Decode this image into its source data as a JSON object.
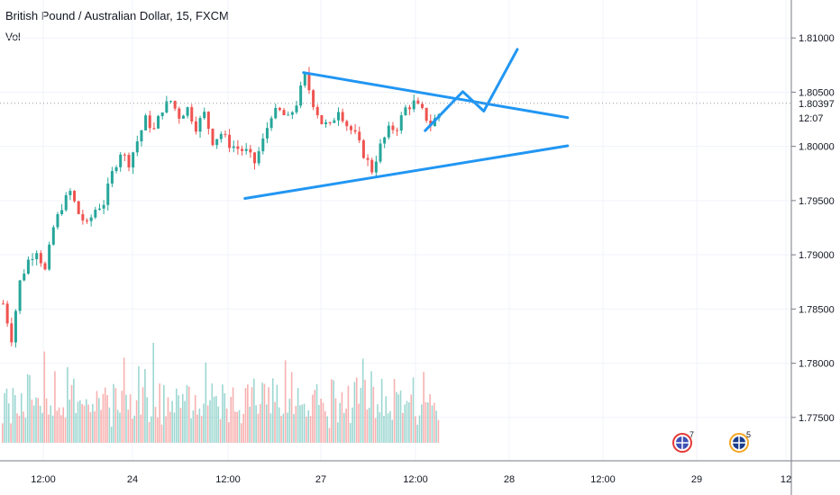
{
  "header": {
    "title": "British Pound / Australian Dollar, 15, FXCM",
    "volume_label": "Vol"
  },
  "colors": {
    "up": "#26a69a",
    "down": "#ef5350",
    "trendline": "#2196f3",
    "grid": "#f0f3fa",
    "axis_text": "#131722"
  },
  "chart_data": {
    "type": "candlestick",
    "title": "British Pound / Australian Dollar, 15, FXCM",
    "x_ticks": [
      "12:00",
      "24",
      "12:00",
      "27",
      "12:00",
      "28",
      "12:00",
      "29",
      "12"
    ],
    "y_ticks": [
      1.775,
      1.78,
      1.785,
      1.79,
      1.795,
      1.8,
      1.805,
      1.81
    ],
    "y_tick_labels": [
      "1.77500",
      "1.78000",
      "1.78500",
      "1.79000",
      "1.79500",
      "1.80000",
      "1.80500",
      "1.81000"
    ],
    "ylim": [
      1.771,
      1.8135
    ],
    "current_price": 1.80397,
    "current_price_label": "1.80397",
    "countdown_label": "12:07",
    "close_path": [
      {
        "t": 0,
        "p": 1.7855
      },
      {
        "t": 2,
        "p": 1.7823
      },
      {
        "t": 4,
        "p": 1.7875
      },
      {
        "t": 6,
        "p": 1.7895
      },
      {
        "t": 8,
        "p": 1.7905
      },
      {
        "t": 10,
        "p": 1.7885
      },
      {
        "t": 12,
        "p": 1.7925
      },
      {
        "t": 14,
        "p": 1.7945
      },
      {
        "t": 16,
        "p": 1.7958
      },
      {
        "t": 18,
        "p": 1.7938
      },
      {
        "t": 20,
        "p": 1.7927
      },
      {
        "t": 22,
        "p": 1.7942
      },
      {
        "t": 24,
        "p": 1.7948
      },
      {
        "t": 26,
        "p": 1.7975
      },
      {
        "t": 28,
        "p": 1.7995
      },
      {
        "t": 30,
        "p": 1.7985
      },
      {
        "t": 32,
        "p": 1.8005
      },
      {
        "t": 34,
        "p": 1.8025
      },
      {
        "t": 36,
        "p": 1.8015
      },
      {
        "t": 38,
        "p": 1.8035
      },
      {
        "t": 40,
        "p": 1.8042
      },
      {
        "t": 42,
        "p": 1.8028
      },
      {
        "t": 44,
        "p": 1.8035
      },
      {
        "t": 46,
        "p": 1.8018
      },
      {
        "t": 48,
        "p": 1.803
      },
      {
        "t": 50,
        "p": 1.8005
      },
      {
        "t": 52,
        "p": 1.8012
      },
      {
        "t": 54,
        "p": 1.8002
      },
      {
        "t": 56,
        "p": 1.7998
      },
      {
        "t": 58,
        "p": 1.7995
      },
      {
        "t": 60,
        "p": 1.7985
      },
      {
        "t": 62,
        "p": 1.8005
      },
      {
        "t": 64,
        "p": 1.803
      },
      {
        "t": 66,
        "p": 1.8032
      },
      {
        "t": 68,
        "p": 1.8025
      },
      {
        "t": 70,
        "p": 1.804
      },
      {
        "t": 72,
        "p": 1.8065
      },
      {
        "t": 74,
        "p": 1.804
      },
      {
        "t": 76,
        "p": 1.8022
      },
      {
        "t": 78,
        "p": 1.8018
      },
      {
        "t": 80,
        "p": 1.8035
      },
      {
        "t": 82,
        "p": 1.802
      },
      {
        "t": 84,
        "p": 1.801
      },
      {
        "t": 86,
        "p": 1.7993
      },
      {
        "t": 88,
        "p": 1.7978
      },
      {
        "t": 90,
        "p": 1.8
      },
      {
        "t": 92,
        "p": 1.8015
      },
      {
        "t": 94,
        "p": 1.8018
      },
      {
        "t": 96,
        "p": 1.8035
      },
      {
        "t": 98,
        "p": 1.804
      },
      {
        "t": 100,
        "p": 1.8032
      },
      {
        "t": 102,
        "p": 1.802
      },
      {
        "t": 104,
        "p": 1.803
      }
    ],
    "volume_levels": [
      0.25,
      0.55,
      0.75,
      0.4,
      0.3,
      0.62,
      0.8,
      0.45,
      0.35,
      0.5,
      0.28,
      0.42,
      0.58,
      0.65,
      0.38,
      0.48,
      0.72,
      0.55,
      0.32,
      0.44,
      0.9,
      0.6,
      0.36,
      0.5,
      0.3,
      0.62,
      0.4,
      0.52,
      0.35,
      0.45,
      0.3,
      0.7,
      0.48,
      0.58,
      0.62,
      0.4,
      0.55,
      0.5,
      0.35,
      0.42,
      0.6,
      0.38,
      0.3,
      0.45,
      0.5,
      0.68,
      0.52,
      0.42,
      0.55,
      0.6,
      0.45,
      0.35
    ],
    "drawn_trendlines": [
      {
        "name": "upper-trendline",
        "points": [
          {
            "t": 72,
            "p": 1.8068
          },
          {
            "t": 135,
            "p": 1.80265
          }
        ]
      },
      {
        "name": "lower-trendline",
        "points": [
          {
            "t": 58,
            "p": 1.7952
          },
          {
            "t": 135,
            "p": 1.80005
          }
        ]
      },
      {
        "name": "projection-path",
        "points": [
          {
            "t": 101,
            "p": 1.80145
          },
          {
            "t": 110,
            "p": 1.80505
          },
          {
            "t": 115,
            "p": 1.80325
          },
          {
            "t": 123,
            "p": 1.80895
          }
        ]
      }
    ],
    "grid": true
  },
  "event_markers": [
    {
      "icon": "economic-event-us-icon",
      "count": "7"
    },
    {
      "icon": "economic-event-uk-icon",
      "count": "5"
    }
  ]
}
